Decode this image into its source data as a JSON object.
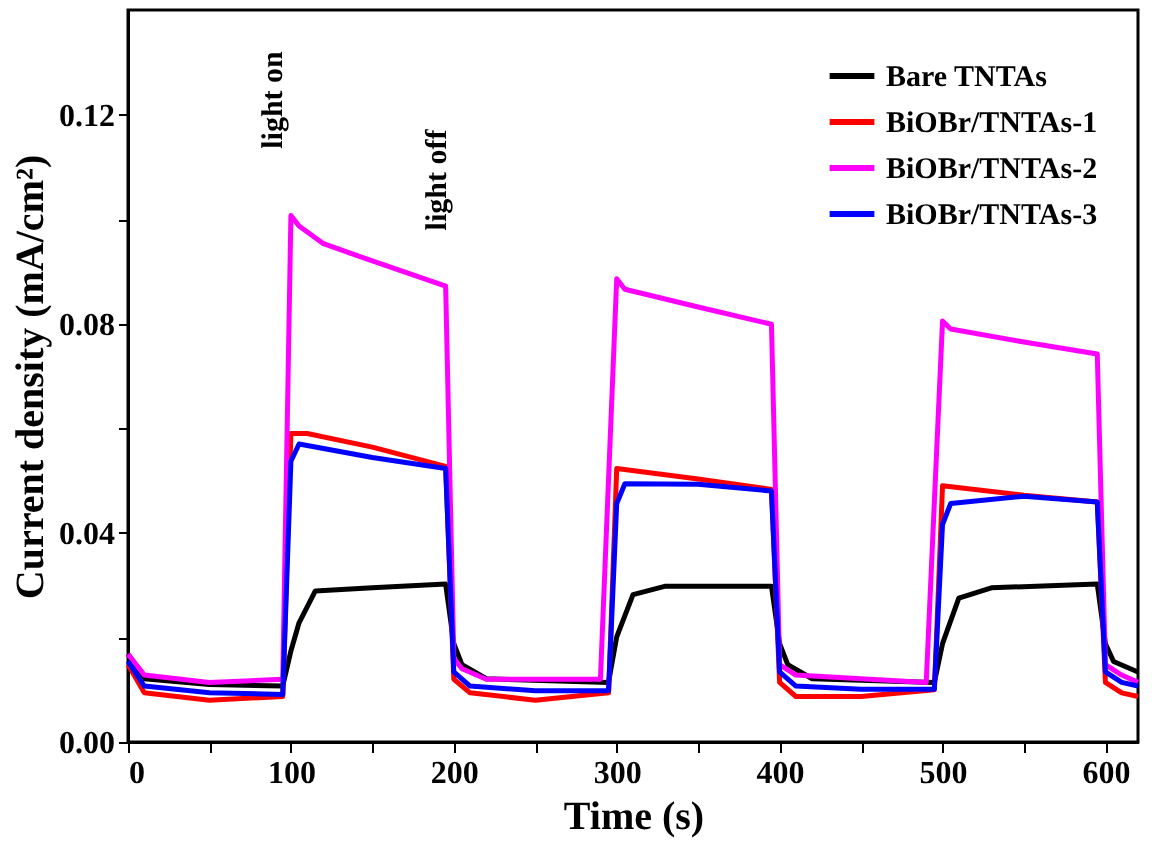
{
  "chart_data": {
    "type": "line",
    "xlabel": "Time (s)",
    "ylabel": "Current density (mA/cm²)",
    "xlim": [
      0,
      620
    ],
    "ylim": [
      0,
      0.14
    ],
    "xticks": [
      0,
      {
        "value": 50,
        "label": null
      },
      100,
      {
        "value": 150,
        "label": null
      },
      200,
      {
        "value": 250,
        "label": null
      },
      300,
      {
        "value": 350,
        "label": null
      },
      400,
      {
        "value": 450,
        "label": null
      },
      500,
      {
        "value": 550,
        "label": null
      },
      600
    ],
    "yticks": [
      {
        "value": 0,
        "label": "0.00"
      },
      {
        "value": 0.02,
        "label": null
      },
      {
        "value": 0.04,
        "label": "0.04"
      },
      {
        "value": 0.06,
        "label": null
      },
      {
        "value": 0.08,
        "label": "0.08"
      },
      {
        "value": 0.1,
        "label": null
      },
      {
        "value": 0.12,
        "label": "0.12"
      }
    ],
    "legend": "top right",
    "grid": false,
    "line_style": "solid",
    "marker": "none",
    "annotations": [
      "light on",
      "light off"
    ],
    "series": [
      {
        "name": "Bare TNTAs",
        "color": "#000000",
        "x": [
          0,
          10,
          50,
          95,
          100,
          105,
          115,
          150,
          195,
          200,
          205,
          220,
          295,
          300,
          310,
          330,
          395,
          400,
          405,
          420,
          495,
          500,
          510,
          530,
          595,
          600,
          605,
          620
        ],
        "values": [
          0.0168,
          0.0121,
          0.011,
          0.0107,
          0.0174,
          0.0228,
          0.0289,
          0.0295,
          0.0302,
          0.0188,
          0.0148,
          0.0121,
          0.0114,
          0.0201,
          0.0282,
          0.0298,
          0.0298,
          0.0188,
          0.0148,
          0.0121,
          0.0114,
          0.0188,
          0.0275,
          0.0295,
          0.0302,
          0.0188,
          0.0154,
          0.0134
        ]
      },
      {
        "name": "BiOBr/TNTAs-1",
        "color": "#ff0000",
        "x": [
          0,
          10,
          50,
          95,
          100,
          110,
          150,
          195,
          200,
          210,
          250,
          295,
          300,
          350,
          395,
          400,
          410,
          450,
          495,
          500,
          550,
          595,
          600,
          610,
          620
        ],
        "values": [
          0.0148,
          0.0094,
          0.008,
          0.0087,
          0.059,
          0.059,
          0.0564,
          0.0527,
          0.012,
          0.0094,
          0.008,
          0.0094,
          0.0523,
          0.0503,
          0.0483,
          0.0114,
          0.0087,
          0.0087,
          0.01,
          0.049,
          0.0472,
          0.0459,
          0.0114,
          0.0094,
          0.0087
        ]
      },
      {
        "name": "BiOBr/TNTAs-2",
        "color": "#ff00ff",
        "x": [
          0,
          10,
          50,
          95,
          100,
          105,
          120,
          150,
          195,
          200,
          205,
          220,
          290,
          300,
          305,
          350,
          395,
          400,
          410,
          490,
          500,
          505,
          550,
          595,
          600,
          610,
          620
        ],
        "values": [
          0.0168,
          0.0128,
          0.0114,
          0.012,
          0.1007,
          0.0987,
          0.0953,
          0.092,
          0.0872,
          0.016,
          0.014,
          0.012,
          0.012,
          0.0886,
          0.0866,
          0.0832,
          0.0799,
          0.0148,
          0.0128,
          0.0114,
          0.0805,
          0.079,
          0.0765,
          0.0742,
          0.0148,
          0.0128,
          0.0114
        ]
      },
      {
        "name": "BiOBr/TNTAs-3",
        "color": "#0000ff",
        "x": [
          0,
          10,
          50,
          95,
          100,
          105,
          150,
          195,
          200,
          210,
          250,
          295,
          300,
          305,
          350,
          395,
          400,
          410,
          450,
          495,
          500,
          505,
          550,
          595,
          600,
          610,
          620
        ],
        "values": [
          0.0154,
          0.0107,
          0.0094,
          0.0091,
          0.0537,
          0.057,
          0.0544,
          0.0523,
          0.0134,
          0.0107,
          0.0098,
          0.0098,
          0.0456,
          0.0494,
          0.0493,
          0.048,
          0.0134,
          0.0107,
          0.0101,
          0.0101,
          0.0416,
          0.0456,
          0.047,
          0.0459,
          0.0134,
          0.0114,
          0.0107
        ]
      }
    ]
  }
}
